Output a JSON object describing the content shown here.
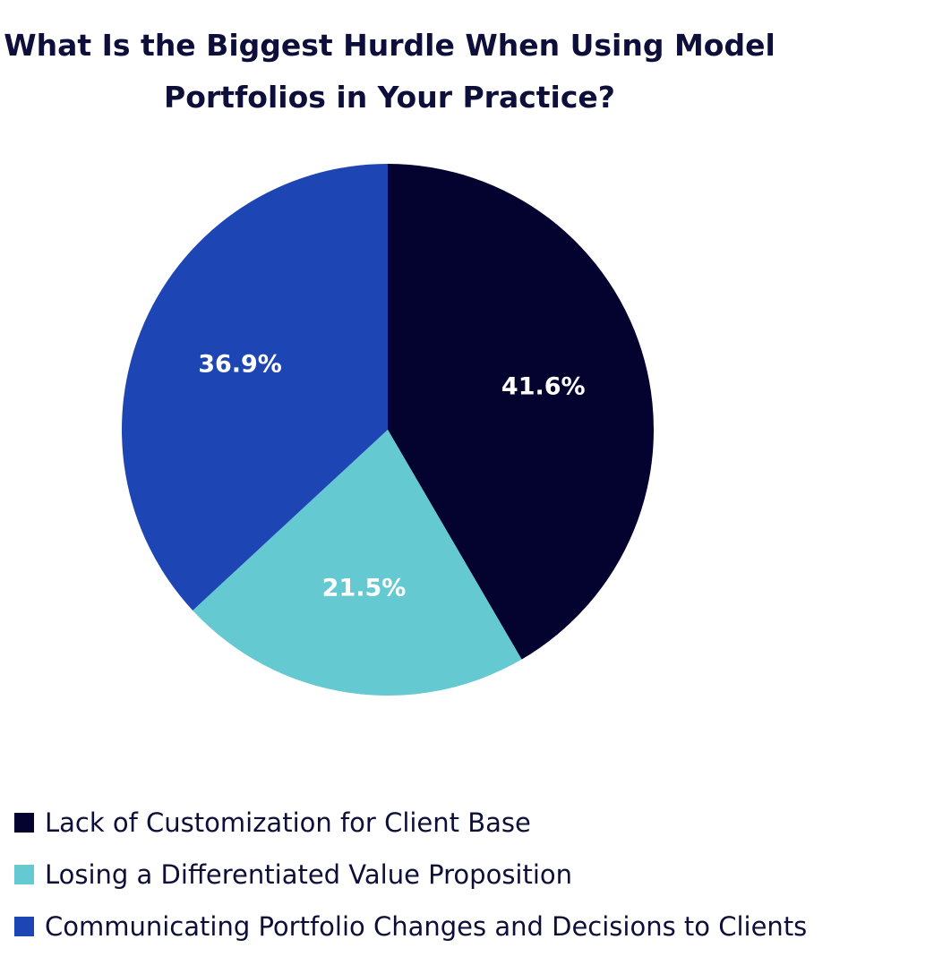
{
  "chart_data": {
    "type": "pie",
    "title_lines": [
      "What Is the Biggest Hurdle When Using Model",
      "Portfolios in Your Practice?"
    ],
    "slices": [
      {
        "label": "Lack of Customization for Client Base",
        "value": 41.6,
        "display": "41.6%",
        "color": "#04022f"
      },
      {
        "label": "Losing a Differentiated Value Proposition",
        "value": 21.5,
        "display": "21.5%",
        "color": "#64c9d1"
      },
      {
        "label": "Communicating Portfolio Changes and Decisions to Clients",
        "value": 36.9,
        "display": "36.9%",
        "color": "#1e45b4"
      }
    ],
    "start": "12 o'clock",
    "direction": "clockwise",
    "legend_placement": "bottom-left"
  }
}
